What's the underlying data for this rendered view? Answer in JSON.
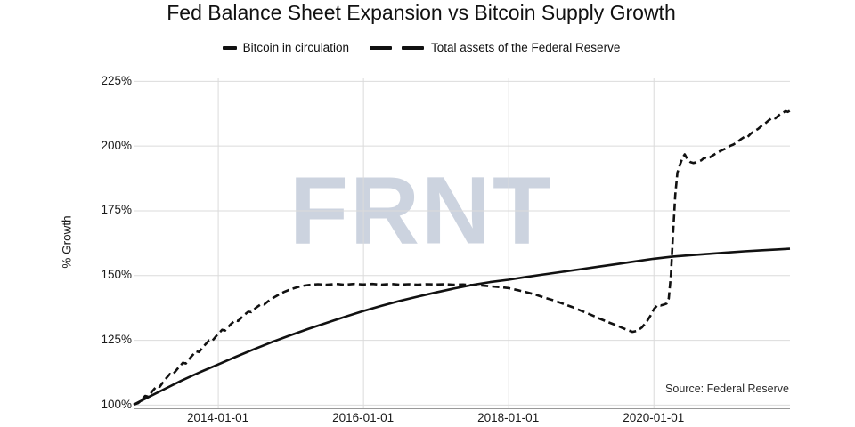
{
  "title": "Fed Balance Sheet Expansion vs Bitcoin Supply Growth",
  "watermark": {
    "text": "FRNT"
  },
  "source_note": "Source: Federal Reserve",
  "legend": {
    "items": [
      {
        "label": "Bitcoin in circulation",
        "style": "solid"
      },
      {
        "label": "Total assets of the Federal Reserve",
        "style": "dashed"
      }
    ]
  },
  "colors": {
    "line": "#111111",
    "grid": "#dbdbdb",
    "axis": "#999999",
    "watermark": "#ccd3df",
    "text": "#1a1a1a"
  },
  "chart_data": {
    "type": "line",
    "title": "Fed Balance Sheet Expansion vs Bitcoin Supply Growth",
    "xlabel": "",
    "ylabel": "% Growth",
    "grid": true,
    "legend_position": "top-center",
    "xlim": [
      2012.84,
      2021.88
    ],
    "ylim": [
      98.6,
      227.0
    ],
    "y_ticks": [
      {
        "v": 100,
        "label": "100%"
      },
      {
        "v": 125,
        "label": "125%"
      },
      {
        "v": 150,
        "label": "150%"
      },
      {
        "v": 175,
        "label": "175%"
      },
      {
        "v": 200,
        "label": "200%"
      },
      {
        "v": 225,
        "label": "225%"
      }
    ],
    "x_ticks": [
      {
        "t": 2014,
        "label": "2014-01-01"
      },
      {
        "t": 2016,
        "label": "2016-01-01"
      },
      {
        "t": 2018,
        "label": "2018-01-01"
      },
      {
        "t": 2020,
        "label": "2020-01-01"
      }
    ],
    "series": [
      {
        "name": "Bitcoin in circulation",
        "style": "solid",
        "unit": "% growth",
        "points": [
          [
            2012.84,
            100
          ],
          [
            2013.0,
            102.3
          ],
          [
            2013.25,
            105.8
          ],
          [
            2013.5,
            109.3
          ],
          [
            2013.75,
            112.5
          ],
          [
            2014.0,
            115.5
          ],
          [
            2014.25,
            118.5
          ],
          [
            2014.5,
            121.4
          ],
          [
            2014.75,
            124.2
          ],
          [
            2015.0,
            126.8
          ],
          [
            2015.25,
            129.3
          ],
          [
            2015.5,
            131.6
          ],
          [
            2015.75,
            133.9
          ],
          [
            2016.0,
            136.1
          ],
          [
            2016.25,
            138.1
          ],
          [
            2016.5,
            140.0
          ],
          [
            2016.75,
            141.7
          ],
          [
            2017.0,
            143.3
          ],
          [
            2017.25,
            144.8
          ],
          [
            2017.5,
            146.2
          ],
          [
            2017.75,
            147.3
          ],
          [
            2018.0,
            148.2
          ],
          [
            2018.25,
            149.3
          ],
          [
            2018.5,
            150.3
          ],
          [
            2018.75,
            151.3
          ],
          [
            2019.0,
            152.3
          ],
          [
            2019.25,
            153.3
          ],
          [
            2019.5,
            154.3
          ],
          [
            2019.75,
            155.3
          ],
          [
            2020.0,
            156.3
          ],
          [
            2020.25,
            157.1
          ],
          [
            2020.5,
            157.7
          ],
          [
            2020.75,
            158.2
          ],
          [
            2021.0,
            158.7
          ],
          [
            2021.25,
            159.2
          ],
          [
            2021.5,
            159.6
          ],
          [
            2021.7,
            159.9
          ],
          [
            2021.88,
            160.2
          ]
        ]
      },
      {
        "name": "Total assets of the Federal Reserve",
        "style": "dashed",
        "unit": "% growth",
        "points": [
          [
            2012.84,
            100
          ],
          [
            2012.9,
            100.6
          ],
          [
            2012.94,
            101.5
          ],
          [
            2013.0,
            103.4
          ],
          [
            2013.04,
            103.1
          ],
          [
            2013.1,
            105.3
          ],
          [
            2013.16,
            107.2
          ],
          [
            2013.2,
            106.9
          ],
          [
            2013.27,
            109.6
          ],
          [
            2013.34,
            111.9
          ],
          [
            2013.38,
            111.6
          ],
          [
            2013.45,
            114.0
          ],
          [
            2013.52,
            116.2
          ],
          [
            2013.56,
            115.9
          ],
          [
            2013.63,
            118.4
          ],
          [
            2013.7,
            120.6
          ],
          [
            2013.74,
            120.3
          ],
          [
            2013.81,
            122.7
          ],
          [
            2013.88,
            124.8
          ],
          [
            2013.92,
            124.5
          ],
          [
            2013.99,
            126.9
          ],
          [
            2014.06,
            128.9
          ],
          [
            2014.1,
            128.6
          ],
          [
            2014.17,
            130.8
          ],
          [
            2014.24,
            132.6
          ],
          [
            2014.28,
            132.3
          ],
          [
            2014.35,
            134.3
          ],
          [
            2014.42,
            135.9
          ],
          [
            2014.46,
            135.7
          ],
          [
            2014.53,
            137.5
          ],
          [
            2014.6,
            138.9
          ],
          [
            2014.64,
            138.7
          ],
          [
            2014.71,
            140.3
          ],
          [
            2014.78,
            141.5
          ],
          [
            2014.85,
            142.6
          ],
          [
            2014.92,
            143.6
          ],
          [
            2015.0,
            144.5
          ],
          [
            2015.08,
            145.2
          ],
          [
            2015.16,
            145.8
          ],
          [
            2015.25,
            146.2
          ],
          [
            2015.38,
            146.5
          ],
          [
            2015.5,
            146.3
          ],
          [
            2015.63,
            146.6
          ],
          [
            2015.75,
            146.3
          ],
          [
            2015.88,
            146.6
          ],
          [
            2016.0,
            146.4
          ],
          [
            2016.13,
            146.6
          ],
          [
            2016.25,
            146.3
          ],
          [
            2016.38,
            146.6
          ],
          [
            2016.5,
            146.3
          ],
          [
            2016.63,
            146.5
          ],
          [
            2016.75,
            146.3
          ],
          [
            2016.88,
            146.5
          ],
          [
            2017.0,
            146.4
          ],
          [
            2017.13,
            146.5
          ],
          [
            2017.25,
            146.3
          ],
          [
            2017.38,
            146.4
          ],
          [
            2017.5,
            146.2
          ],
          [
            2017.63,
            146.0
          ],
          [
            2017.75,
            145.7
          ],
          [
            2017.88,
            145.4
          ],
          [
            2018.0,
            145.0
          ],
          [
            2018.13,
            144.2
          ],
          [
            2018.25,
            143.4
          ],
          [
            2018.38,
            142.4
          ],
          [
            2018.5,
            141.3
          ],
          [
            2018.63,
            140.2
          ],
          [
            2018.75,
            139.0
          ],
          [
            2018.88,
            137.7
          ],
          [
            2019.0,
            136.3
          ],
          [
            2019.13,
            134.8
          ],
          [
            2019.25,
            133.3
          ],
          [
            2019.38,
            131.8
          ],
          [
            2019.5,
            130.5
          ],
          [
            2019.58,
            129.5
          ],
          [
            2019.65,
            128.7
          ],
          [
            2019.71,
            128.1
          ],
          [
            2019.78,
            128.5
          ],
          [
            2019.84,
            129.8
          ],
          [
            2019.9,
            131.8
          ],
          [
            2019.96,
            134.4
          ],
          [
            2020.01,
            137.0
          ],
          [
            2020.06,
            138.5
          ],
          [
            2020.1,
            138.3
          ],
          [
            2020.14,
            138.6
          ],
          [
            2020.18,
            139.0
          ],
          [
            2020.21,
            141.0
          ],
          [
            2020.24,
            150.0
          ],
          [
            2020.27,
            166.0
          ],
          [
            2020.3,
            181.0
          ],
          [
            2020.33,
            189.5
          ],
          [
            2020.37,
            193.0
          ],
          [
            2020.4,
            195.2
          ],
          [
            2020.43,
            196.6
          ],
          [
            2020.47,
            194.6
          ],
          [
            2020.51,
            193.6
          ],
          [
            2020.55,
            193.3
          ],
          [
            2020.6,
            193.6
          ],
          [
            2020.66,
            194.3
          ],
          [
            2020.7,
            195.3
          ],
          [
            2020.74,
            194.8
          ],
          [
            2020.8,
            195.9
          ],
          [
            2020.85,
            196.8
          ],
          [
            2020.9,
            197.6
          ],
          [
            2020.95,
            198.3
          ],
          [
            2021.0,
            198.9
          ],
          [
            2021.05,
            199.8
          ],
          [
            2021.1,
            200.4
          ],
          [
            2021.15,
            201.2
          ],
          [
            2021.2,
            202.4
          ],
          [
            2021.25,
            203.3
          ],
          [
            2021.29,
            203.1
          ],
          [
            2021.34,
            204.6
          ],
          [
            2021.39,
            205.6
          ],
          [
            2021.44,
            206.4
          ],
          [
            2021.49,
            207.6
          ],
          [
            2021.54,
            208.6
          ],
          [
            2021.59,
            209.8
          ],
          [
            2021.64,
            210.8
          ],
          [
            2021.68,
            210.5
          ],
          [
            2021.73,
            211.8
          ],
          [
            2021.78,
            212.6
          ],
          [
            2021.82,
            213.3
          ],
          [
            2021.85,
            213.0
          ],
          [
            2021.88,
            213.5
          ]
        ]
      }
    ]
  }
}
